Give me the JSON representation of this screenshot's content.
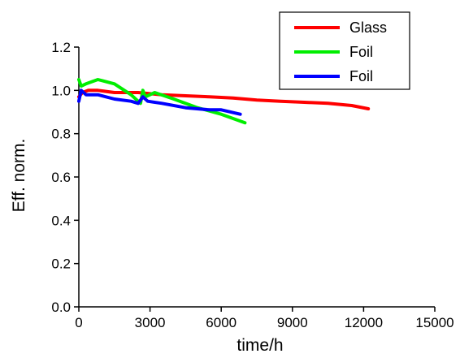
{
  "chart_data": {
    "type": "line",
    "title": "",
    "xlabel": "time/h",
    "ylabel": "Eff. norm.",
    "xlim": [
      0,
      15000
    ],
    "ylim": [
      0.0,
      1.2
    ],
    "x_ticks": [
      0,
      3000,
      6000,
      9000,
      12000,
      15000
    ],
    "x_tick_labels": [
      "0",
      "3000",
      "6000",
      "9000",
      "12000",
      "15000"
    ],
    "y_ticks": [
      0.0,
      0.2,
      0.4,
      0.6,
      0.8,
      1.0,
      1.2
    ],
    "y_tick_labels": [
      "0.0",
      "0.2",
      "0.4",
      "0.6",
      "0.8",
      "1.0",
      "1.2"
    ],
    "grid": false,
    "legend_position": "top-right",
    "series": [
      {
        "name": "Glass",
        "color": "#ff0000",
        "x": [
          0,
          150,
          400,
          800,
          1500,
          2500,
          3500,
          4500,
          5500,
          6500,
          7500,
          8500,
          9500,
          10500,
          11500,
          12200
        ],
        "y": [
          0.97,
          0.99,
          1.0,
          1.0,
          0.99,
          0.99,
          0.98,
          0.975,
          0.97,
          0.965,
          0.955,
          0.95,
          0.945,
          0.94,
          0.93,
          0.915
        ]
      },
      {
        "name": "Foil",
        "color": "#00ee00",
        "x": [
          0,
          100,
          300,
          800,
          1500,
          2200,
          2600,
          2700,
          2800,
          3200,
          4000,
          5000,
          6000,
          7000
        ],
        "y": [
          1.05,
          1.02,
          1.03,
          1.05,
          1.03,
          0.98,
          0.94,
          1.0,
          0.97,
          0.99,
          0.96,
          0.92,
          0.89,
          0.85
        ]
      },
      {
        "name": "Foil",
        "color": "#0000ff",
        "x": [
          0,
          100,
          300,
          800,
          1500,
          2200,
          2500,
          2700,
          2900,
          3500,
          4500,
          5500,
          6000,
          6800
        ],
        "y": [
          0.95,
          1.0,
          0.98,
          0.98,
          0.96,
          0.95,
          0.94,
          0.97,
          0.95,
          0.94,
          0.92,
          0.91,
          0.91,
          0.89
        ]
      }
    ]
  }
}
